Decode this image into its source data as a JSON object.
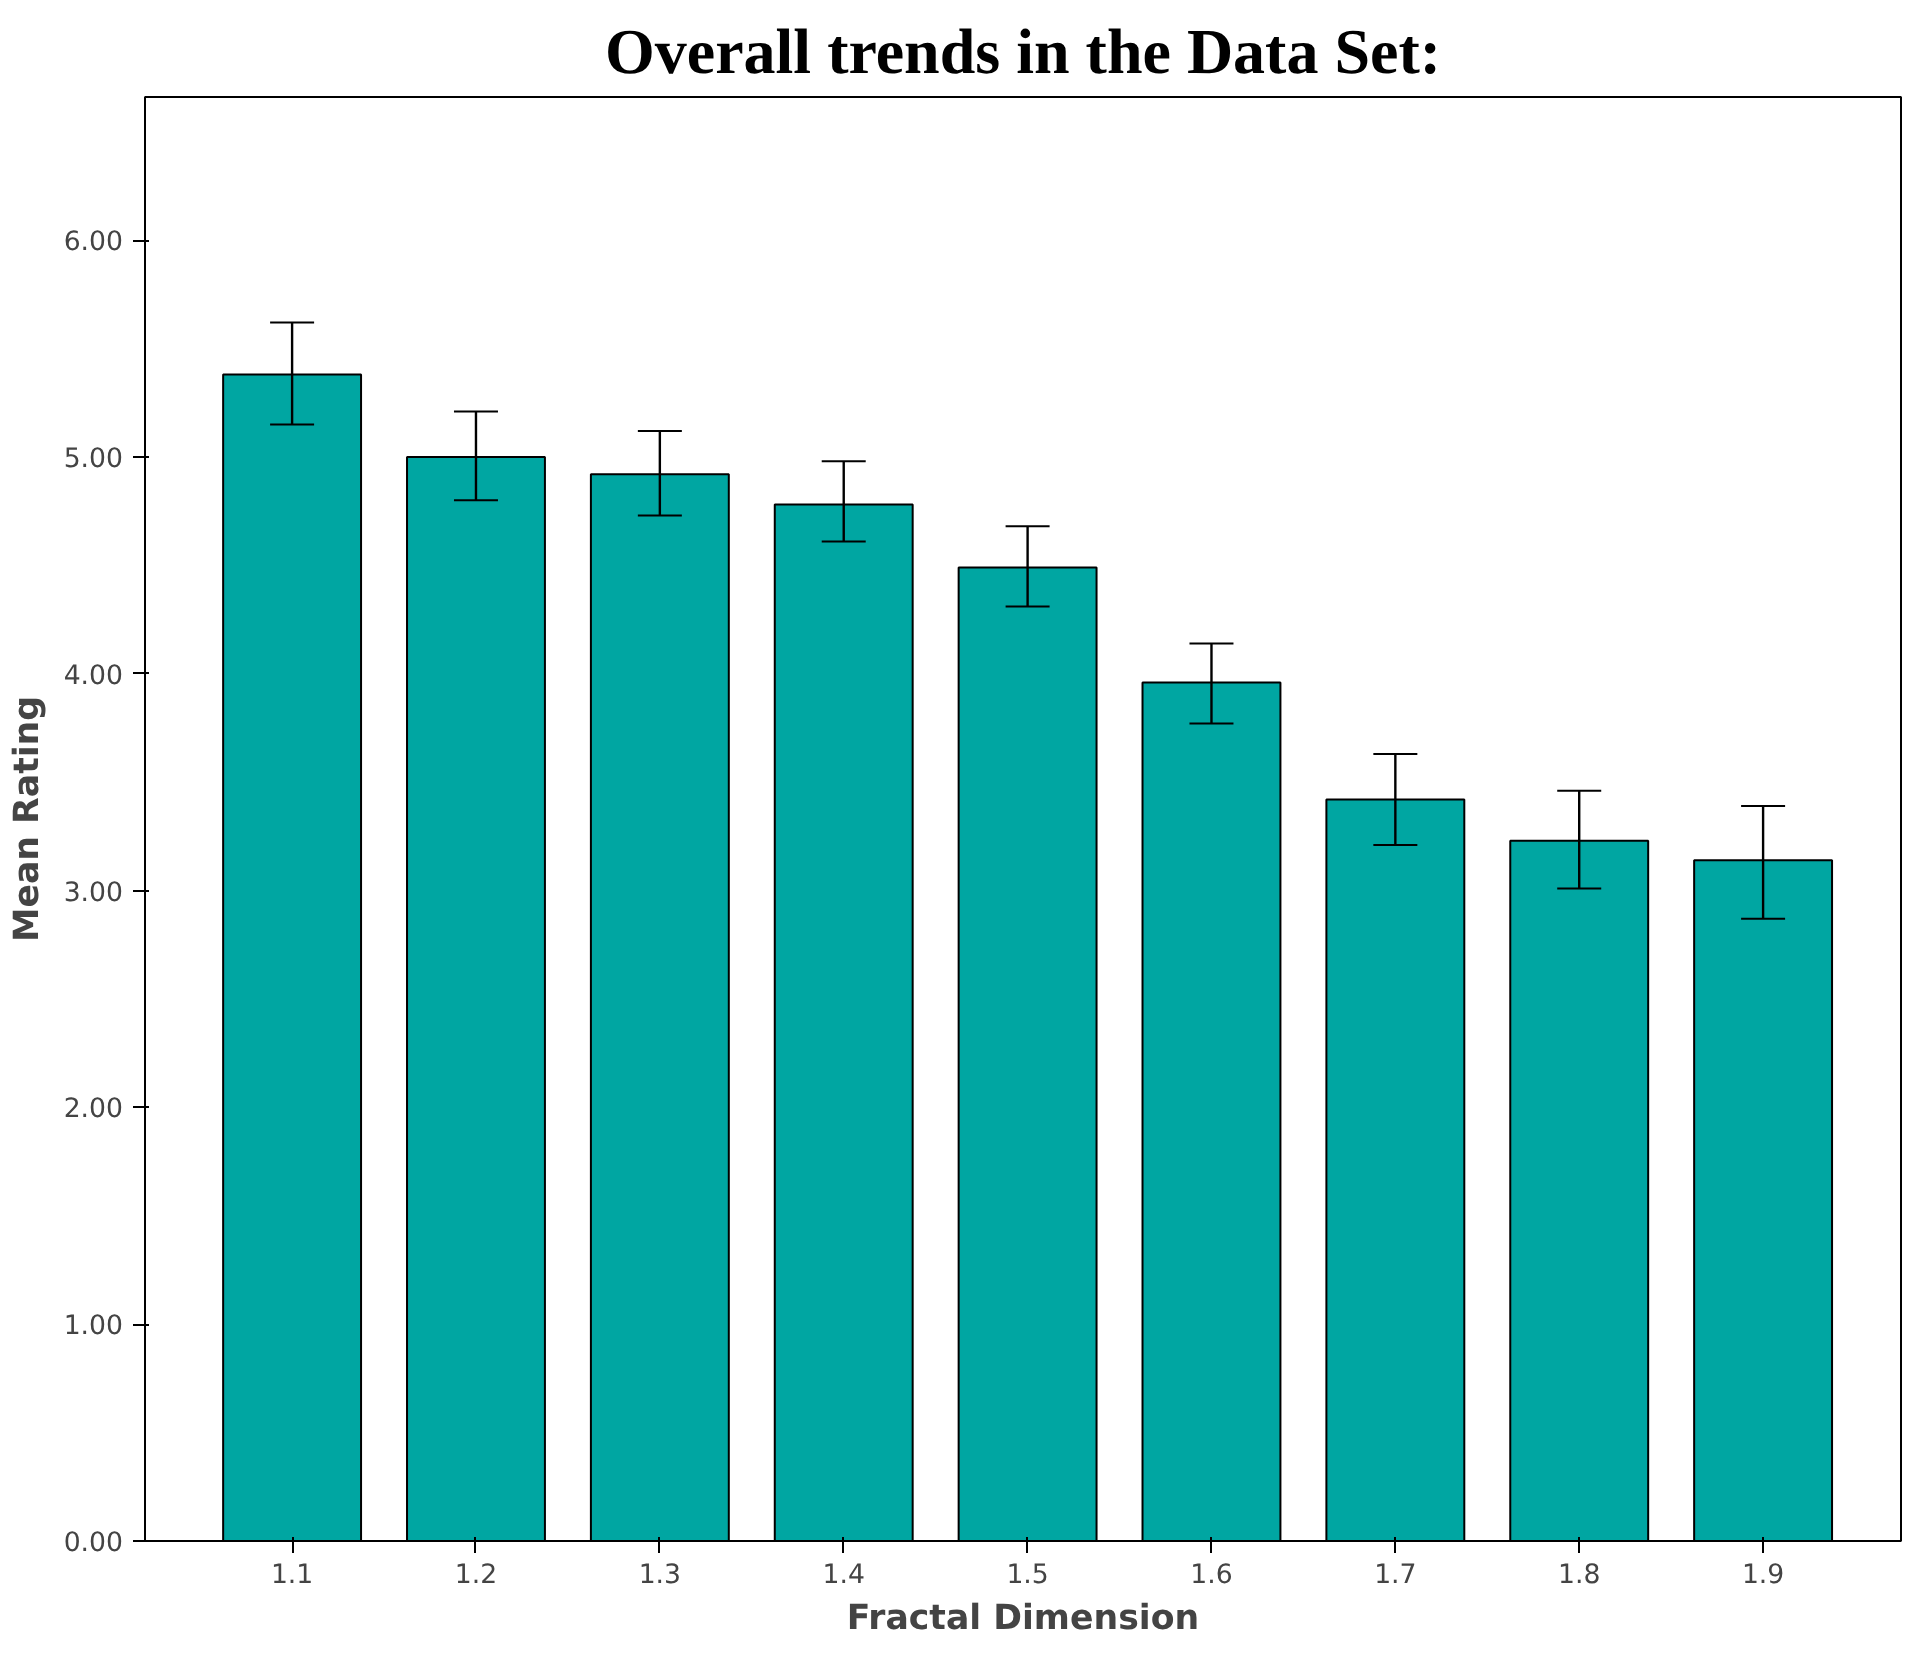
{
  "chart_data": {
    "type": "bar",
    "title": "Overall trends in the Data Set:",
    "xlabel": "Fractal Dimension",
    "ylabel": "Mean Rating",
    "categories": [
      "1.1",
      "1.2",
      "1.3",
      "1.4",
      "1.5",
      "1.6",
      "1.7",
      "1.8",
      "1.9"
    ],
    "values": [
      5.38,
      5.0,
      4.92,
      4.78,
      4.49,
      3.96,
      3.42,
      3.23,
      3.14
    ],
    "errors": [
      [
        5.15,
        5.62
      ],
      [
        4.8,
        5.21
      ],
      [
        4.73,
        5.12
      ],
      [
        4.61,
        4.98
      ],
      [
        4.31,
        4.68
      ],
      [
        3.77,
        4.14
      ],
      [
        3.21,
        3.63
      ],
      [
        3.01,
        3.46
      ],
      [
        2.87,
        3.39
      ]
    ],
    "color": "#00a6a2",
    "ylim": [
      0,
      6.66
    ],
    "yticks": [
      {
        "value": 0,
        "label": "0.00"
      },
      {
        "value": 1,
        "label": "1.00"
      },
      {
        "value": 2,
        "label": "2.00"
      },
      {
        "value": 3,
        "label": "3.00"
      },
      {
        "value": 4,
        "label": "4.00"
      },
      {
        "value": 5,
        "label": "5.00"
      },
      {
        "value": 6,
        "label": "6.00"
      }
    ],
    "grid": false
  }
}
